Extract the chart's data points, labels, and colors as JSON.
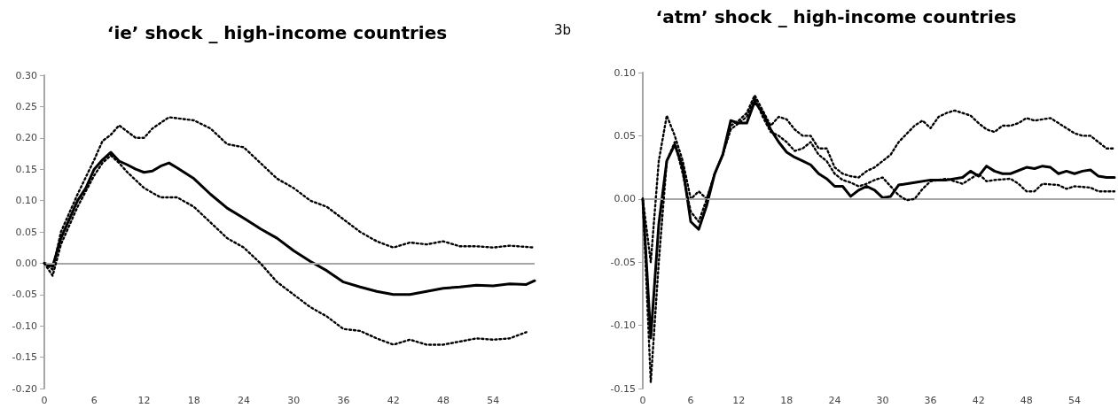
{
  "chart_data": [
    {
      "type": "line",
      "title": "‘ie’ shock _ high-income countries",
      "marker": "none",
      "xlim": [
        0,
        59
      ],
      "xticks": [
        0,
        6,
        12,
        18,
        24,
        30,
        36,
        42,
        48,
        54
      ],
      "ylim": [
        -0.2,
        0.3
      ],
      "yticks": [
        {
          "value": -0.2,
          "label": "-0.20"
        },
        {
          "value": -0.15,
          "label": "-0.15"
        },
        {
          "value": -0.1,
          "label": "-0.10"
        },
        {
          "value": -0.05,
          "label": "-0.05"
        },
        {
          "value": 0,
          "label": "0.00"
        },
        {
          "value": 0.05,
          "label": "0.05"
        },
        {
          "value": 0.1,
          "label": "0.10"
        },
        {
          "value": 0.15,
          "label": "0.15"
        },
        {
          "value": 0.2,
          "label": "0.20"
        },
        {
          "value": 0.25,
          "label": "0.25"
        },
        {
          "value": 0.3,
          "label": "0.30"
        }
      ],
      "ref_lines": [
        {
          "axis": "y",
          "value": 0,
          "color": "#a6a6a6"
        }
      ],
      "series": [
        {
          "color": "#000000",
          "line_style": "solid",
          "x": [
            0,
            1,
            2,
            3,
            4,
            5,
            6,
            7,
            8,
            9,
            10,
            11,
            12,
            13,
            14,
            15,
            16,
            18,
            20,
            22,
            24,
            26,
            28,
            30,
            32,
            34,
            36,
            38,
            40,
            42,
            44,
            46,
            48,
            50,
            52,
            54,
            56,
            58,
            59
          ],
          "values": [
            0,
            -0.005,
            0.04,
            0.07,
            0.1,
            0.12,
            0.15,
            0.165,
            0.177,
            0.163,
            0.157,
            0.15,
            0.145,
            0.147,
            0.155,
            0.16,
            0.152,
            0.135,
            0.11,
            0.088,
            0.072,
            0.055,
            0.04,
            0.02,
            0.003,
            -0.012,
            -0.03,
            -0.038,
            -0.045,
            -0.05,
            -0.05,
            -0.045,
            -0.04,
            -0.038,
            -0.035,
            -0.036,
            -0.033,
            -0.034,
            -0.028
          ]
        },
        {
          "color": "#000000",
          "line_style": "dotted",
          "x": [
            0,
            1,
            2,
            4,
            6,
            7,
            8,
            9,
            10,
            11,
            12,
            13,
            15,
            18,
            20,
            22,
            24,
            26,
            28,
            30,
            32,
            34,
            36,
            38,
            40,
            42,
            44,
            46,
            48,
            50,
            52,
            54,
            56,
            59
          ],
          "values": [
            0,
            -0.01,
            0.05,
            0.11,
            0.165,
            0.195,
            0.205,
            0.22,
            0.21,
            0.2,
            0.2,
            0.215,
            0.233,
            0.228,
            0.215,
            0.19,
            0.185,
            0.16,
            0.135,
            0.12,
            0.1,
            0.09,
            0.07,
            0.05,
            0.035,
            0.025,
            0.033,
            0.03,
            0.035,
            0.027,
            0.027,
            0.025,
            0.028,
            0.025
          ]
        },
        {
          "color": "#000000",
          "line_style": "dotted",
          "x": [
            0,
            1,
            2,
            4,
            6,
            7,
            8,
            9,
            10,
            12,
            14,
            16,
            18,
            20,
            22,
            24,
            26,
            28,
            30,
            32,
            34,
            36,
            38,
            40,
            42,
            44,
            46,
            48,
            50,
            52,
            54,
            56,
            58
          ],
          "values": [
            0,
            -0.02,
            0.03,
            0.09,
            0.14,
            0.16,
            0.172,
            0.16,
            0.145,
            0.12,
            0.105,
            0.105,
            0.09,
            0.065,
            0.04,
            0.025,
            0,
            -0.03,
            -0.05,
            -0.07,
            -0.085,
            -0.105,
            -0.108,
            -0.12,
            -0.13,
            -0.122,
            -0.13,
            -0.13,
            -0.125,
            -0.12,
            -0.122,
            -0.12,
            -0.11
          ]
        }
      ]
    },
    {
      "type": "line",
      "title": "‘atm’ shock _ high-income countries",
      "annotations": [
        "3b"
      ],
      "marker": "none",
      "xlim": [
        0,
        59
      ],
      "xticks": [
        0,
        6,
        12,
        18,
        24,
        30,
        36,
        42,
        48,
        54
      ],
      "ylim": [
        -0.15,
        0.1
      ],
      "yticks": [
        {
          "value": -0.15,
          "label": "-0.15"
        },
        {
          "value": -0.1,
          "label": "-0.10"
        },
        {
          "value": -0.05,
          "label": "-0.05"
        },
        {
          "value": 0,
          "label": "0.00"
        },
        {
          "value": 0.05,
          "label": "0.05"
        },
        {
          "value": 0.1,
          "label": "0.10"
        }
      ],
      "ref_lines": [
        {
          "axis": "y",
          "value": 0,
          "color": "#a6a6a6"
        }
      ],
      "series": [
        {
          "color": "#000000",
          "line_style": "solid",
          "x": [
            0,
            1,
            2,
            3,
            4,
            5,
            6,
            7,
            8,
            9,
            10,
            11,
            12,
            13,
            14,
            15,
            16,
            17,
            18,
            19,
            20,
            21,
            22,
            23,
            24,
            25,
            26,
            27,
            28,
            29,
            30,
            31,
            32,
            34,
            36,
            38,
            40,
            41,
            42,
            43,
            44,
            45,
            46,
            48,
            49,
            50,
            51,
            52,
            53,
            54,
            55,
            56,
            57,
            58,
            59
          ],
          "values": [
            0,
            -0.11,
            -0.02,
            0.03,
            0.043,
            0.025,
            -0.018,
            -0.024,
            -0.005,
            0.02,
            0.035,
            0.062,
            0.06,
            0.06,
            0.077,
            0.068,
            0.055,
            0.045,
            0.037,
            0.033,
            0.03,
            0.027,
            0.02,
            0.016,
            0.01,
            0.01,
            0.002,
            0.007,
            0.01,
            0.007,
            0.001,
            0.002,
            0.011,
            0.013,
            0.015,
            0.015,
            0.017,
            0.022,
            0.018,
            0.026,
            0.022,
            0.02,
            0.02,
            0.025,
            0.024,
            0.026,
            0.025,
            0.02,
            0.022,
            0.02,
            0.022,
            0.023,
            0.018,
            0.017,
            0.017
          ]
        },
        {
          "color": "#000000",
          "line_style": "dotted",
          "x": [
            0,
            1,
            2,
            3,
            4,
            5,
            6,
            7,
            8,
            9,
            10,
            11,
            12,
            13,
            14,
            15,
            16,
            17,
            18,
            19,
            20,
            21,
            22,
            23,
            24,
            25,
            26,
            27,
            28,
            29,
            30,
            31,
            32,
            34,
            35,
            36,
            37,
            38,
            39,
            40,
            41,
            42,
            43,
            44,
            45,
            46,
            47,
            48,
            49,
            50,
            51,
            52,
            53,
            54,
            55,
            56,
            57,
            58,
            59
          ],
          "values": [
            0,
            -0.05,
            0.03,
            0.066,
            0.05,
            0.03,
            0,
            0.006,
            0,
            0.02,
            0.035,
            0.058,
            0.062,
            0.068,
            0.082,
            0.07,
            0.058,
            0.065,
            0.063,
            0.055,
            0.05,
            0.05,
            0.04,
            0.04,
            0.025,
            0.02,
            0.018,
            0.017,
            0.022,
            0.025,
            0.03,
            0.035,
            0.045,
            0.058,
            0.062,
            0.056,
            0.065,
            0.068,
            0.07,
            0.068,
            0.066,
            0.06,
            0.055,
            0.053,
            0.058,
            0.058,
            0.06,
            0.064,
            0.062,
            0.063,
            0.064,
            0.06,
            0.056,
            0.052,
            0.05,
            0.05,
            0.045,
            0.04,
            0.04
          ]
        },
        {
          "color": "#000000",
          "line_style": "dotted",
          "x": [
            0,
            1,
            2,
            3,
            4,
            5,
            6,
            7,
            8,
            9,
            10,
            11,
            12,
            13,
            14,
            15,
            16,
            17,
            18,
            19,
            20,
            21,
            22,
            23,
            24,
            25,
            26,
            27,
            28,
            29,
            30,
            31,
            32,
            33,
            34,
            35,
            36,
            38,
            40,
            42,
            43,
            44,
            46,
            47,
            48,
            49,
            50,
            52,
            53,
            54,
            56,
            57,
            58,
            59
          ],
          "values": [
            0,
            -0.145,
            -0.05,
            0.03,
            0.045,
            0.02,
            -0.01,
            -0.018,
            0,
            0.02,
            0.035,
            0.055,
            0.06,
            0.065,
            0.08,
            0.065,
            0.053,
            0.05,
            0.045,
            0.038,
            0.04,
            0.045,
            0.035,
            0.03,
            0.02,
            0.015,
            0.013,
            0.01,
            0.012,
            0.015,
            0.017,
            0.01,
            0.003,
            -0.001,
            0,
            0.008,
            0.014,
            0.016,
            0.012,
            0.02,
            0.014,
            0.015,
            0.016,
            0.012,
            0.006,
            0.006,
            0.012,
            0.011,
            0.008,
            0.01,
            0.009,
            0.006,
            0.006,
            0.006
          ]
        }
      ]
    }
  ]
}
